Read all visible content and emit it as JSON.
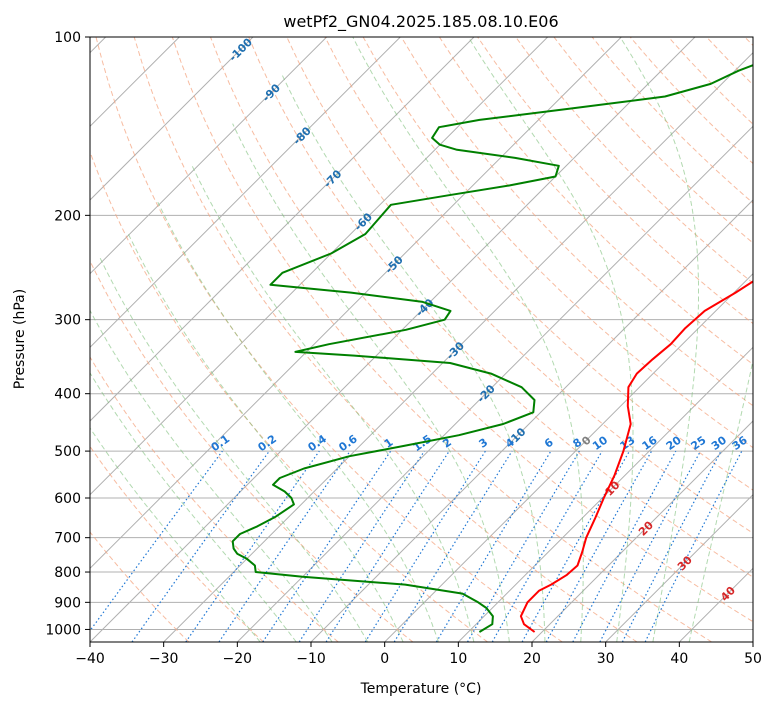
{
  "chart_data": {
    "type": "line",
    "title": "wetPf2_GN04.2025.185.08.10.E06",
    "xlabel": "Temperature (°C)",
    "ylabel": "Pressure (hPa)",
    "xlim": [
      -40,
      50
    ],
    "ylim": [
      1050,
      100
    ],
    "y_scale": "log",
    "x_ticks": [
      -40,
      -30,
      -20,
      -10,
      0,
      10,
      20,
      30,
      40,
      50
    ],
    "y_ticks": [
      100,
      200,
      300,
      400,
      500,
      600,
      700,
      800,
      900,
      1000
    ],
    "grid": true,
    "skew": "temperature isotherms skewed 45 degrees",
    "series": [
      {
        "name": "",
        "color": "#ff0000",
        "description_values": "temperature",
        "points": [
          {
            "p": 1010,
            "t": 19.0
          },
          {
            "p": 980,
            "t": 16.5
          },
          {
            "p": 950,
            "t": 15.0
          },
          {
            "p": 900,
            "t": 14.0
          },
          {
            "p": 860,
            "t": 14.0
          },
          {
            "p": 840,
            "t": 14.8
          },
          {
            "p": 810,
            "t": 15.6
          },
          {
            "p": 780,
            "t": 15.8
          },
          {
            "p": 740,
            "t": 14.6
          },
          {
            "p": 700,
            "t": 13.2
          },
          {
            "p": 650,
            "t": 11.8
          },
          {
            "p": 600,
            "t": 10.2
          },
          {
            "p": 550,
            "t": 8.6
          },
          {
            "p": 500,
            "t": 6.5
          },
          {
            "p": 450,
            "t": 3.8
          },
          {
            "p": 420,
            "t": 1.0
          },
          {
            "p": 390,
            "t": -1.5
          },
          {
            "p": 370,
            "t": -2.2
          },
          {
            "p": 350,
            "t": -2.0
          },
          {
            "p": 330,
            "t": -1.6
          },
          {
            "p": 310,
            "t": -1.8
          },
          {
            "p": 290,
            "t": -1.5
          },
          {
            "p": 270,
            "t": 0.2
          },
          {
            "p": 250,
            "t": 1.7
          },
          {
            "p": 230,
            "t": 2.9
          },
          {
            "p": 210,
            "t": 3.6
          },
          {
            "p": 195,
            "t": 3.6
          },
          {
            "p": 180,
            "t": 2.4
          },
          {
            "p": 170,
            "t": 1.6
          },
          {
            "p": 160,
            "t": 2.4
          },
          {
            "p": 150,
            "t": 2.7
          },
          {
            "p": 140,
            "t": 1.8
          },
          {
            "p": 130,
            "t": 0.8
          },
          {
            "p": 120,
            "t": 0.5
          },
          {
            "p": 112,
            "t": 1.6
          },
          {
            "p": 105,
            "t": 2.4
          },
          {
            "p": 100,
            "t": 2.6
          }
        ]
      },
      {
        "name": "",
        "color": "#008000",
        "description_values": "dewpoint",
        "points": [
          {
            "p": 1010,
            "t": 11.5
          },
          {
            "p": 980,
            "t": 12.2
          },
          {
            "p": 950,
            "t": 11.2
          },
          {
            "p": 920,
            "t": 9.2
          },
          {
            "p": 900,
            "t": 7.3
          },
          {
            "p": 870,
            "t": 4.0
          },
          {
            "p": 840,
            "t": -5.0
          },
          {
            "p": 815,
            "t": -20.0
          },
          {
            "p": 800,
            "t": -27.0
          },
          {
            "p": 780,
            "t": -28.0
          },
          {
            "p": 760,
            "t": -30.0
          },
          {
            "p": 745,
            "t": -32.0
          },
          {
            "p": 730,
            "t": -33.2
          },
          {
            "p": 710,
            "t": -34.3
          },
          {
            "p": 690,
            "t": -34.3
          },
          {
            "p": 670,
            "t": -33.0
          },
          {
            "p": 645,
            "t": -31.8
          },
          {
            "p": 615,
            "t": -31.0
          },
          {
            "p": 600,
            "t": -32.2
          },
          {
            "p": 585,
            "t": -34.0
          },
          {
            "p": 570,
            "t": -36.5
          },
          {
            "p": 555,
            "t": -36.5
          },
          {
            "p": 535,
            "t": -34.5
          },
          {
            "p": 510,
            "t": -30.0
          },
          {
            "p": 490,
            "t": -24.0
          },
          {
            "p": 470,
            "t": -18.0
          },
          {
            "p": 450,
            "t": -13.5
          },
          {
            "p": 430,
            "t": -11.0
          },
          {
            "p": 410,
            "t": -12.5
          },
          {
            "p": 390,
            "t": -16.0
          },
          {
            "p": 370,
            "t": -22.0
          },
          {
            "p": 355,
            "t": -29.0
          },
          {
            "p": 345,
            "t": -43.0
          },
          {
            "p": 340,
            "t": -51.5
          },
          {
            "p": 330,
            "t": -48.0
          },
          {
            "p": 312,
            "t": -39.5
          },
          {
            "p": 300,
            "t": -35.6
          },
          {
            "p": 290,
            "t": -36.0
          },
          {
            "p": 280,
            "t": -41.0
          },
          {
            "p": 270,
            "t": -52.0
          },
          {
            "p": 262,
            "t": -64.0
          },
          {
            "p": 250,
            "t": -64.0
          },
          {
            "p": 232,
            "t": -60.0
          },
          {
            "p": 215,
            "t": -58.0
          },
          {
            "p": 192,
            "t": -58.5
          },
          {
            "p": 185,
            "t": -52.0
          },
          {
            "p": 178,
            "t": -45.0
          },
          {
            "p": 172,
            "t": -40.0
          },
          {
            "p": 165,
            "t": -41.0
          },
          {
            "p": 160,
            "t": -48.0
          },
          {
            "p": 155,
            "t": -57.0
          },
          {
            "p": 152,
            "t": -60.0
          },
          {
            "p": 148,
            "t": -62.0
          },
          {
            "p": 142,
            "t": -62.5
          },
          {
            "p": 138,
            "t": -58.0
          },
          {
            "p": 132,
            "t": -47.0
          },
          {
            "p": 126,
            "t": -36.0
          },
          {
            "p": 120,
            "t": -31.5
          },
          {
            "p": 114,
            "t": -29.5
          },
          {
            "p": 108,
            "t": -26.5
          },
          {
            "p": 104,
            "t": -25.3
          },
          {
            "p": 100,
            "t": -24.6
          }
        ]
      }
    ],
    "mixing_ratio_labels": [
      "0.1",
      "0.2",
      "0.4",
      "0.6",
      "1",
      "1.5",
      "2",
      "3",
      "4",
      "6",
      "8",
      "10",
      "13",
      "16",
      "20",
      "25",
      "30",
      "36"
    ],
    "isotherm_labels": [
      "-100",
      "-90",
      "-80",
      "-70",
      "-60",
      "-50",
      "-40",
      "-30",
      "-20",
      "-10",
      "0",
      "10",
      "20",
      "30",
      "40"
    ]
  },
  "colors": {
    "temperature": "#ff0000",
    "dewpoint": "#008000",
    "dry_adiabat": "#f4a582",
    "moist_adiabat": "#7fbf7b",
    "mixing_ratio": "#1f77d4",
    "isotherm_label_cold": "#1f6fb0",
    "isotherm_label_zero": "#808080",
    "isotherm_label_warm": "#d62728",
    "grid": "#b0b0b0"
  }
}
